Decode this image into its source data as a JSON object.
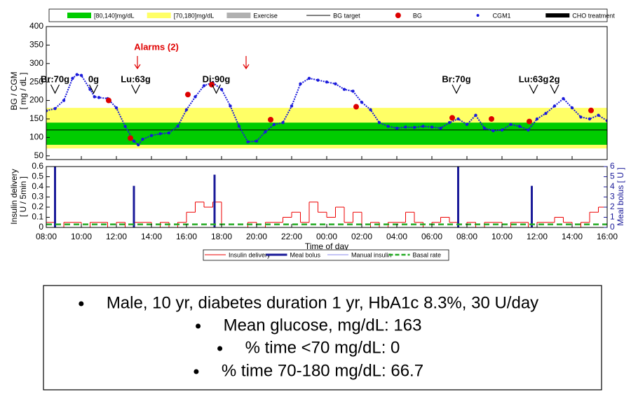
{
  "chart_data": [
    {
      "type": "glucose",
      "ylabel": [
        "BG / CGM",
        "[ mg / dL ]"
      ],
      "xlim": [
        8,
        40
      ],
      "xticks": [
        {
          "value": 8,
          "label": "08:00"
        },
        {
          "value": 10,
          "label": "10:00"
        },
        {
          "value": 12,
          "label": "12:00"
        },
        {
          "value": 14,
          "label": "14:00"
        },
        {
          "value": 16,
          "label": "16:00"
        },
        {
          "value": 18,
          "label": "18:00"
        },
        {
          "value": 20,
          "label": "20:00"
        },
        {
          "value": 22,
          "label": "22:00"
        },
        {
          "value": 24,
          "label": "00:00"
        },
        {
          "value": 26,
          "label": "02:00"
        },
        {
          "value": 28,
          "label": "04:00"
        },
        {
          "value": 30,
          "label": "06:00"
        },
        {
          "value": 32,
          "label": "08:00"
        },
        {
          "value": 34,
          "label": "10:00"
        },
        {
          "value": 36,
          "label": "12:00"
        },
        {
          "value": 38,
          "label": "14:00"
        },
        {
          "value": 40,
          "label": "16:00"
        }
      ],
      "ylim": [
        40,
        400
      ],
      "yticks": [
        50,
        100,
        150,
        200,
        250,
        300,
        350,
        400
      ],
      "series": [
        {
          "name": "[80,140]mg/dL",
          "marker": "band",
          "color": "#00cc00",
          "values": [
            80,
            140
          ]
        },
        {
          "name": "[70,180]mg/dL",
          "marker": "band",
          "color": "#ffff66",
          "values": [
            70,
            180
          ]
        },
        {
          "name": "Exercise",
          "marker": "band",
          "color": "#b0b0b0"
        },
        {
          "name": "BG target",
          "marker": "line",
          "color": "#000000",
          "values": [
            120
          ]
        },
        {
          "name": "BG",
          "marker": "dot",
          "color": "#dd0000",
          "x": [
            11.56,
            12.8,
            16.08,
            17.44,
            20.8,
            25.68,
            31.16,
            33.4,
            35.56,
            39.08
          ],
          "values": [
            200,
            98,
            216,
            243,
            148,
            183,
            153,
            150,
            143,
            173
          ]
        },
        {
          "name": "CGM1",
          "marker": "small-dot",
          "color": "#1a1adb",
          "x": [
            8,
            8.5,
            9,
            9.5,
            9.75,
            10,
            10.5,
            10.75,
            11,
            11.5,
            12,
            12.5,
            13,
            13.25,
            13.5,
            14,
            14.5,
            15,
            15.5,
            16,
            16.5,
            17,
            17.5,
            18,
            18.5,
            19,
            19.5,
            20,
            20.5,
            21,
            21.5,
            22,
            22.5,
            23,
            23.5,
            24,
            24.5,
            25,
            25.5,
            26,
            26.5,
            27,
            27.5,
            28,
            28.5,
            29,
            29.5,
            30,
            30.5,
            31,
            31.5,
            32,
            32.5,
            33,
            33.5,
            34,
            34.5,
            35,
            35.5,
            36,
            36.5,
            37,
            37.5,
            38,
            38.5,
            39,
            39.5,
            40
          ],
          "values": [
            172,
            178,
            200,
            260,
            270,
            268,
            230,
            210,
            208,
            205,
            180,
            130,
            90,
            80,
            95,
            105,
            110,
            112,
            130,
            175,
            210,
            240,
            248,
            230,
            185,
            130,
            88,
            90,
            115,
            135,
            140,
            185,
            245,
            260,
            255,
            250,
            245,
            230,
            225,
            195,
            175,
            140,
            130,
            125,
            128,
            127,
            130,
            128,
            125,
            140,
            150,
            135,
            160,
            125,
            118,
            120,
            135,
            130,
            120,
            150,
            165,
            185,
            205,
            180,
            155,
            150,
            160,
            145
          ]
        },
        {
          "name": "CHO treatment",
          "marker": "bar",
          "color": "#000000",
          "x": [
            8.5,
            10.7,
            13.1,
            17.7,
            31.4,
            35.8,
            37.0
          ],
          "labels": [
            "Br:70g",
            "0g",
            "Lu:63g",
            "Di:90g",
            "Br:70g",
            "Lu:63g",
            "2g"
          ]
        }
      ],
      "alarm": {
        "text": "Alarms (2)",
        "x": [
          13.2,
          19.4
        ]
      }
    },
    {
      "type": "insulin",
      "ylabel": [
        "Insulin delivery",
        "[ U / 5min ]"
      ],
      "y2label": "Meal bolus [ U ]",
      "xlabel": "Time of day",
      "xlim": [
        8,
        40
      ],
      "ylim": [
        0,
        0.6
      ],
      "yticks": [
        0,
        0.1,
        0.2,
        0.3,
        0.4,
        0.5,
        0.6
      ],
      "y2lim": [
        0,
        6
      ],
      "y2ticks": [
        0,
        1,
        2,
        3,
        4,
        5,
        6
      ],
      "series": [
        {
          "name": "Insulin delivery",
          "marker": "step",
          "color": "#ee0000",
          "x": [
            8,
            8.5,
            9,
            9.5,
            10,
            10.5,
            11,
            11.5,
            12,
            12.5,
            13,
            13.5,
            14,
            14.5,
            15,
            15.5,
            16,
            16.5,
            17,
            17.5,
            18,
            18.5,
            19,
            19.5,
            20,
            20.5,
            21,
            21.5,
            22,
            22.5,
            23,
            23.5,
            24,
            24.5,
            25,
            25.5,
            26,
            26.5,
            27,
            27.5,
            28,
            28.5,
            29,
            29.5,
            30,
            30.5,
            31,
            31.5,
            32,
            32.5,
            33,
            33.5,
            34,
            34.5,
            35,
            35.5,
            36,
            36.5,
            37,
            37.5,
            38,
            38.5,
            39,
            39.5,
            40
          ],
          "values": [
            0.05,
            0,
            0.05,
            0.05,
            0,
            0.05,
            0.05,
            0,
            0.05,
            0,
            0.05,
            0.05,
            0,
            0.05,
            0,
            0.05,
            0.15,
            0.25,
            0.2,
            0.25,
            0,
            0,
            0,
            0.05,
            0,
            0.05,
            0.05,
            0.1,
            0.15,
            0.05,
            0.25,
            0.15,
            0.1,
            0.2,
            0.05,
            0.15,
            0,
            0.05,
            0,
            0.05,
            0.05,
            0.15,
            0.05,
            0,
            0.05,
            0.1,
            0.05,
            0,
            0.05,
            0,
            0.05,
            0.05,
            0,
            0.05,
            0.05,
            0,
            0.05,
            0.05,
            0.1,
            0.05,
            0,
            0.05,
            0.15,
            0.2,
            0.05
          ]
        },
        {
          "name": "Meal bolus",
          "marker": "bar",
          "axis": "y2",
          "color": "#1a1a99",
          "x": [
            8.5,
            13.0,
            17.6,
            31.5,
            35.7
          ],
          "values": [
            6,
            4.1,
            5.2,
            6,
            4.1
          ]
        },
        {
          "name": "Manual insulin",
          "marker": "line",
          "color": "#8888ee"
        },
        {
          "name": "Basal rate",
          "marker": "dash",
          "color": "#22aa22",
          "x": [
            8,
            40
          ],
          "values": [
            0.03,
            0.03
          ]
        }
      ]
    }
  ],
  "notes": [
    "Male, 10 yr, diabetes duration 1 yr, HbA1c 8.3%, 30 U/day",
    "Mean glucose, mg/dL: 163",
    "% time <70 mg/dL: 0",
    "% time 70-180 mg/dL: 66.7"
  ]
}
